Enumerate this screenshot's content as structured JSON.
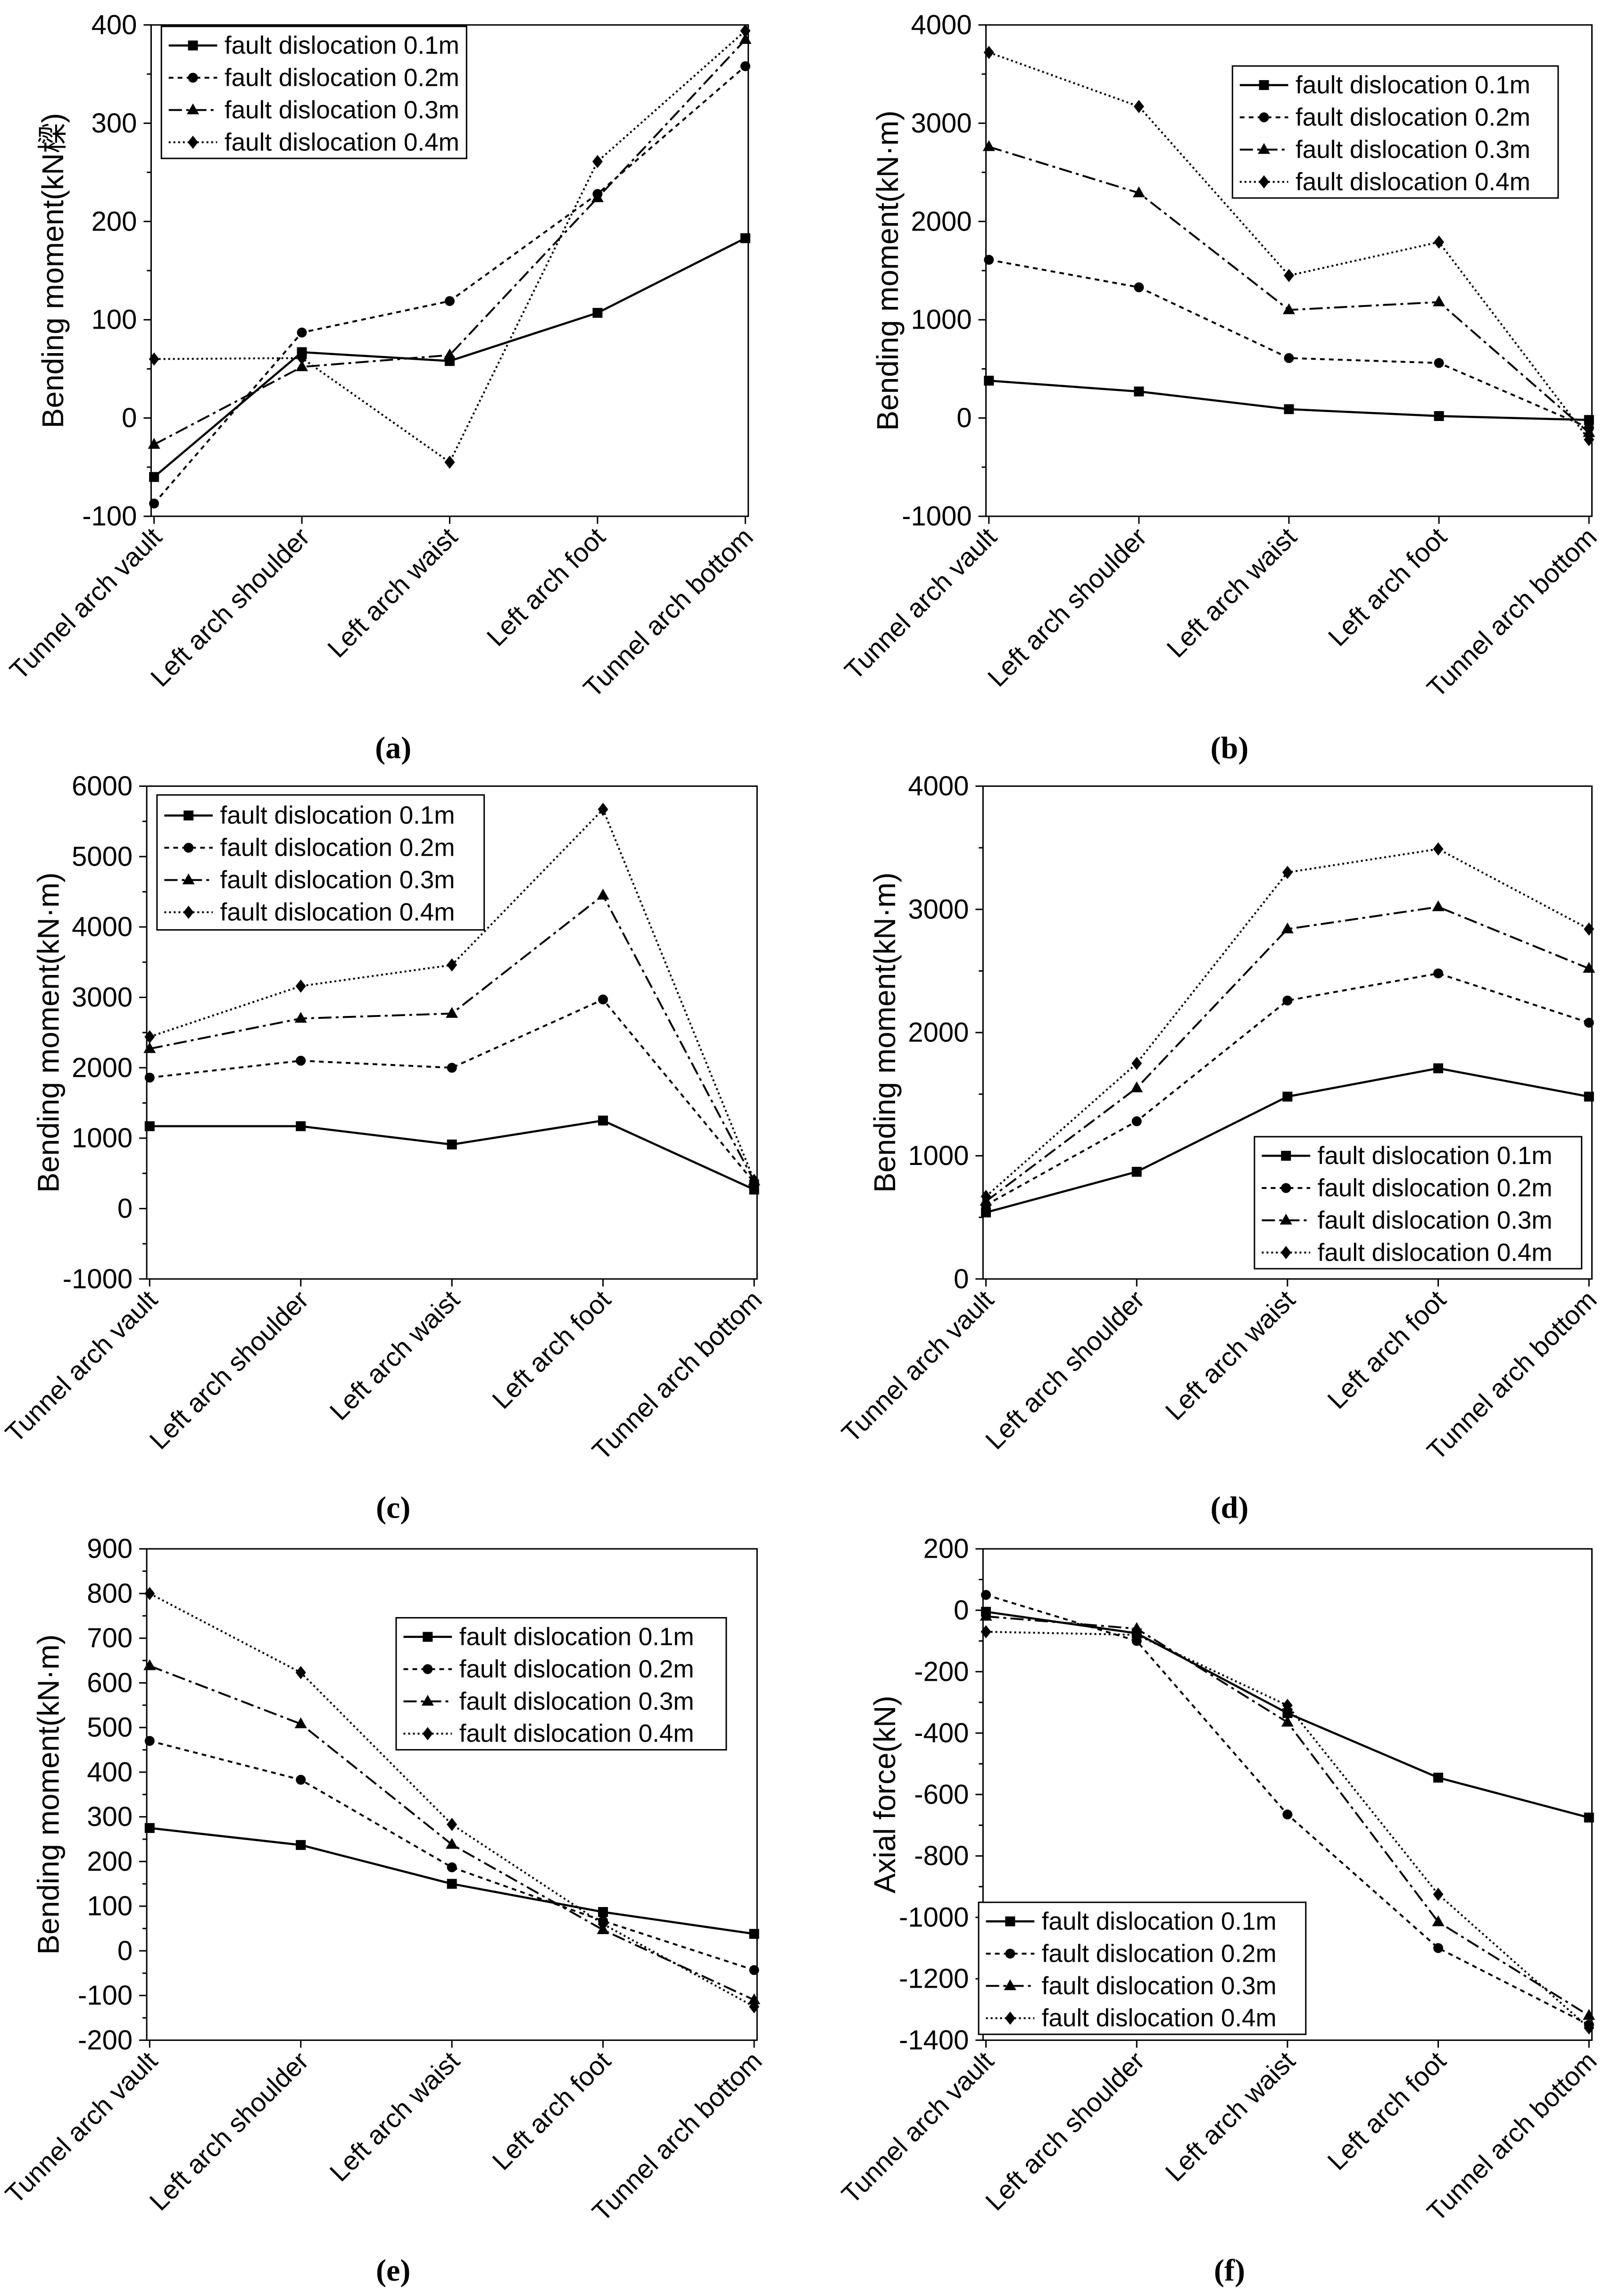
{
  "colors": {
    "ink": "#000000",
    "background": "#ffffff"
  },
  "chart_data": [
    {
      "type": "line",
      "label": "(a)",
      "ylabel": "Bending moment(kN樑)",
      "ylim": [
        -100,
        400
      ],
      "y_ticks": [
        -100,
        0,
        100,
        200,
        300,
        400
      ],
      "grid": false,
      "legend": {
        "position": "top-left"
      },
      "categories": [
        "Tunnel arch vault",
        "Left arch shoulder",
        "Left arch waist",
        "Left arch foot",
        "Tunnel arch bottom"
      ],
      "series": [
        {
          "name": "fault dislocation 0.1m",
          "values": [
            -60,
            67,
            58,
            107,
            183
          ]
        },
        {
          "name": "fault dislocation 0.2m",
          "values": [
            -87,
            87,
            119,
            228,
            358
          ]
        },
        {
          "name": "fault dislocation 0.3m",
          "values": [
            -27,
            52,
            64,
            224,
            385
          ]
        },
        {
          "name": "fault dislocation 0.4m",
          "values": [
            60,
            61,
            -45,
            261,
            394
          ]
        }
      ]
    },
    {
      "type": "line",
      "label": "(b)",
      "ylabel": "Bending moment(kN·m)",
      "ylim": [
        -1000,
        4000
      ],
      "y_ticks": [
        -1000,
        0,
        1000,
        2000,
        3000,
        4000
      ],
      "grid": false,
      "legend": {
        "position": "top-right"
      },
      "categories": [
        "Tunnel arch vault",
        "Left arch shoulder",
        "Left arch waist",
        "Left arch foot",
        "Tunnel arch bottom"
      ],
      "series": [
        {
          "name": "fault dislocation 0.1m",
          "values": [
            380,
            270,
            90,
            20,
            -20
          ]
        },
        {
          "name": "fault dislocation 0.2m",
          "values": [
            1610,
            1330,
            610,
            560,
            -100
          ]
        },
        {
          "name": "fault dislocation 0.3m",
          "values": [
            2760,
            2290,
            1100,
            1180,
            -150
          ]
        },
        {
          "name": "fault dislocation 0.4m",
          "values": [
            3720,
            3170,
            1450,
            1790,
            -220
          ]
        }
      ]
    },
    {
      "type": "line",
      "label": "(c)",
      "ylabel": "Bending moment(kN·m)",
      "ylim": [
        -1000,
        6000
      ],
      "y_ticks": [
        -1000,
        0,
        1000,
        2000,
        3000,
        4000,
        5000,
        6000
      ],
      "grid": false,
      "legend": {
        "position": "top-left"
      },
      "categories": [
        "Tunnel arch vault",
        "Left arch shoulder",
        "Left arch waist",
        "Left arch foot",
        "Tunnel arch bottom"
      ],
      "series": [
        {
          "name": "fault dislocation 0.1m",
          "values": [
            1170,
            1170,
            910,
            1250,
            270
          ]
        },
        {
          "name": "fault dislocation 0.2m",
          "values": [
            1860,
            2100,
            2000,
            2970,
            370
          ]
        },
        {
          "name": "fault dislocation 0.3m",
          "values": [
            2270,
            2700,
            2770,
            4450,
            390
          ]
        },
        {
          "name": "fault dislocation 0.4m",
          "values": [
            2440,
            3160,
            3460,
            5670,
            400
          ]
        }
      ]
    },
    {
      "type": "line",
      "label": "(d)",
      "ylabel": "Bending moment(kN·m)",
      "ylim": [
        0,
        4000
      ],
      "y_ticks": [
        0,
        1000,
        2000,
        3000,
        4000
      ],
      "grid": false,
      "legend": {
        "position": "bottom-right"
      },
      "categories": [
        "Tunnel arch vault",
        "Left arch shoulder",
        "Left arch waist",
        "Left arch foot",
        "Tunnel arch bottom"
      ],
      "series": [
        {
          "name": "fault dislocation 0.1m",
          "values": [
            540,
            870,
            1480,
            1710,
            1480
          ]
        },
        {
          "name": "fault dislocation 0.2m",
          "values": [
            600,
            1280,
            2260,
            2480,
            2080
          ]
        },
        {
          "name": "fault dislocation 0.3m",
          "values": [
            630,
            1550,
            2840,
            3020,
            2520
          ]
        },
        {
          "name": "fault dislocation 0.4m",
          "values": [
            670,
            1750,
            3300,
            3490,
            2840
          ]
        }
      ]
    },
    {
      "type": "line",
      "label": "(e)",
      "ylabel": "Bending moment(kN·m)",
      "ylim": [
        -200,
        900
      ],
      "y_ticks": [
        -200,
        -100,
        0,
        100,
        200,
        300,
        400,
        500,
        600,
        700,
        800,
        900
      ],
      "grid": false,
      "legend": {
        "position": "top-right"
      },
      "categories": [
        "Tunnel arch vault",
        "Left arch shoulder",
        "Left arch waist",
        "Left arch foot",
        "Tunnel arch bottom"
      ],
      "series": [
        {
          "name": "fault dislocation 0.1m",
          "values": [
            275,
            237,
            150,
            87,
            38
          ]
        },
        {
          "name": "fault dislocation 0.2m",
          "values": [
            470,
            383,
            187,
            67,
            -43
          ]
        },
        {
          "name": "fault dislocation 0.3m",
          "values": [
            638,
            508,
            238,
            47,
            -110
          ]
        },
        {
          "name": "fault dislocation 0.4m",
          "values": [
            800,
            623,
            283,
            60,
            -125
          ]
        }
      ]
    },
    {
      "type": "line",
      "label": "(f)",
      "ylabel": "Axial force(kN)",
      "ylim": [
        -1400,
        200
      ],
      "y_ticks": [
        -1400,
        -1200,
        -1000,
        -800,
        -600,
        -400,
        -200,
        0,
        200
      ],
      "grid": false,
      "legend": {
        "position": "bottom-left"
      },
      "categories": [
        "Tunnel arch vault",
        "Left arch shoulder",
        "Left arch waist",
        "Left arch foot",
        "Tunnel arch bottom"
      ],
      "series": [
        {
          "name": "fault dislocation 0.1m",
          "values": [
            -5,
            -75,
            -335,
            -545,
            -675
          ]
        },
        {
          "name": "fault dislocation 0.2m",
          "values": [
            50,
            -100,
            -665,
            -1100,
            -1350
          ]
        },
        {
          "name": "fault dislocation 0.3m",
          "values": [
            -20,
            -60,
            -365,
            -1015,
            -1320
          ]
        },
        {
          "name": "fault dislocation 0.4m",
          "values": [
            -70,
            -80,
            -310,
            -925,
            -1360
          ]
        }
      ]
    }
  ]
}
